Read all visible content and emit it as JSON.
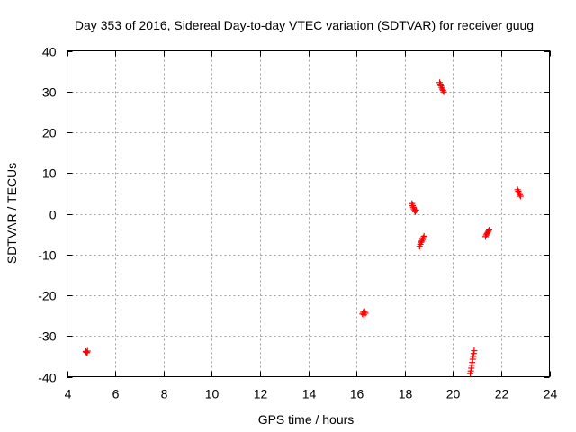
{
  "chart_data": {
    "type": "scatter",
    "title": "Day 353 of 2016, Sidereal Day-to-day VTEC variation (SDTVAR) for receiver guug",
    "xlabel": "GPS time / hours",
    "ylabel": "SDTVAR / TECUs",
    "xlim": [
      4,
      24
    ],
    "ylim": [
      -40,
      40
    ],
    "xticks": [
      "4",
      "6",
      "8",
      "10",
      "12",
      "14",
      "16",
      "18",
      "20",
      "22",
      "24"
    ],
    "yticks": [
      "-40",
      "-30",
      "-20",
      "-10",
      "0",
      "10",
      "20",
      "30",
      "40"
    ],
    "grid": true,
    "marker": "plus",
    "series": [
      {
        "name": "",
        "color": "#ff0000",
        "points": [
          [
            4.78,
            -33.8
          ],
          [
            4.8,
            -34.0
          ],
          [
            4.83,
            -34.1
          ],
          [
            4.85,
            -33.7
          ],
          [
            16.25,
            -24.6
          ],
          [
            16.28,
            -24.2
          ],
          [
            16.31,
            -24.8
          ],
          [
            16.34,
            -24.0
          ],
          [
            16.37,
            -24.4
          ],
          [
            18.3,
            2.5
          ],
          [
            18.33,
            2.0
          ],
          [
            18.35,
            1.6
          ],
          [
            18.38,
            1.2
          ],
          [
            18.41,
            0.8
          ],
          [
            18.44,
            0.5
          ],
          [
            18.47,
            0.9
          ],
          [
            18.62,
            -8.0
          ],
          [
            18.65,
            -7.5
          ],
          [
            18.68,
            -7.0
          ],
          [
            18.71,
            -6.7
          ],
          [
            18.74,
            -6.3
          ],
          [
            18.77,
            -5.9
          ],
          [
            18.8,
            -5.5
          ],
          [
            19.45,
            32.2
          ],
          [
            19.48,
            31.8
          ],
          [
            19.5,
            31.4
          ],
          [
            19.53,
            31.0
          ],
          [
            19.56,
            30.6
          ],
          [
            19.59,
            30.3
          ],
          [
            19.62,
            29.9
          ],
          [
            20.72,
            -39.2
          ],
          [
            20.74,
            -38.6
          ],
          [
            20.76,
            -37.9
          ],
          [
            20.78,
            -37.2
          ],
          [
            20.8,
            -36.5
          ],
          [
            20.82,
            -35.7
          ],
          [
            20.84,
            -35.0
          ],
          [
            20.86,
            -34.3
          ],
          [
            20.88,
            -33.6
          ],
          [
            21.35,
            -5.6
          ],
          [
            21.38,
            -5.2
          ],
          [
            21.41,
            -4.9
          ],
          [
            21.44,
            -4.6
          ],
          [
            21.47,
            -4.3
          ],
          [
            21.5,
            -4.0
          ],
          [
            22.68,
            5.9
          ],
          [
            22.71,
            5.5
          ],
          [
            22.74,
            5.1
          ],
          [
            22.77,
            4.7
          ],
          [
            22.8,
            4.3
          ]
        ]
      }
    ]
  }
}
